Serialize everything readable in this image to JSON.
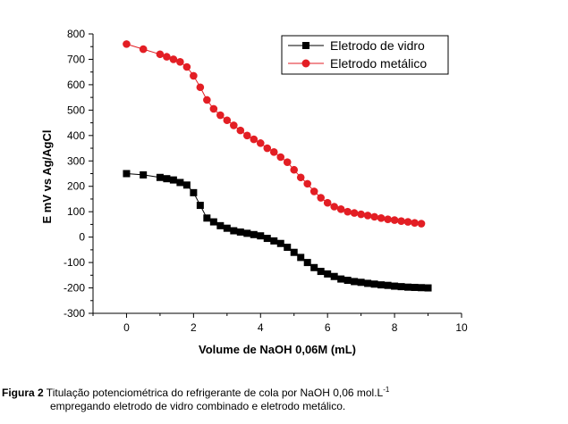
{
  "chart_data": {
    "type": "scatter",
    "xlabel": "Volume de NaOH 0,06M (mL)",
    "ylabel": "E mV vs Ag/AgCl",
    "xlim": [
      -1,
      10
    ],
    "ylim": [
      -300,
      800
    ],
    "x_ticks": [
      0,
      2,
      4,
      6,
      8,
      10
    ],
    "y_ticks": [
      -300,
      -200,
      -100,
      0,
      100,
      200,
      300,
      400,
      500,
      600,
      700,
      800
    ],
    "grid": false,
    "legend_position": "top-right",
    "series": [
      {
        "name": "Eletrodo de vidro",
        "color": "#000000",
        "marker": "square",
        "x": [
          0,
          0.5,
          1.0,
          1.2,
          1.4,
          1.6,
          1.8,
          2.0,
          2.2,
          2.4,
          2.6,
          2.8,
          3.0,
          3.2,
          3.4,
          3.6,
          3.8,
          4.0,
          4.2,
          4.4,
          4.6,
          4.8,
          5.0,
          5.2,
          5.4,
          5.6,
          5.8,
          6.0,
          6.2,
          6.4,
          6.6,
          6.8,
          7.0,
          7.2,
          7.4,
          7.6,
          7.8,
          8.0,
          8.2,
          8.4,
          8.6,
          8.8,
          9.0
        ],
        "y": [
          250,
          245,
          235,
          230,
          225,
          215,
          205,
          175,
          125,
          75,
          60,
          45,
          35,
          25,
          20,
          15,
          10,
          5,
          -5,
          -15,
          -25,
          -40,
          -60,
          -80,
          -100,
          -120,
          -135,
          -145,
          -155,
          -165,
          -170,
          -175,
          -178,
          -182,
          -185,
          -188,
          -190,
          -193,
          -195,
          -197,
          -198,
          -199,
          -200
        ]
      },
      {
        "name": "Eletrodo metálico",
        "color": "#e31e24",
        "marker": "circle",
        "x": [
          0,
          0.5,
          1.0,
          1.2,
          1.4,
          1.6,
          1.8,
          2.0,
          2.2,
          2.4,
          2.6,
          2.8,
          3.0,
          3.2,
          3.4,
          3.6,
          3.8,
          4.0,
          4.2,
          4.4,
          4.6,
          4.8,
          5.0,
          5.2,
          5.4,
          5.6,
          5.8,
          6.0,
          6.2,
          6.4,
          6.6,
          6.8,
          7.0,
          7.2,
          7.4,
          7.6,
          7.8,
          8.0,
          8.2,
          8.4,
          8.6,
          8.8
        ],
        "y": [
          760,
          740,
          720,
          710,
          700,
          690,
          670,
          635,
          590,
          540,
          505,
          480,
          460,
          440,
          420,
          400,
          385,
          370,
          350,
          335,
          315,
          295,
          265,
          235,
          210,
          180,
          155,
          135,
          120,
          110,
          100,
          95,
          90,
          85,
          80,
          75,
          70,
          67,
          63,
          60,
          56,
          53
        ]
      }
    ]
  },
  "caption": {
    "label": "Figura 2",
    "line1": " Titulação potenciométrica do refrigerante de cola por NaOH  0,06 mol.L",
    "line1_sup": "-1",
    "line2": "empregando eletrodo de vidro combinado e eletrodo metálico."
  }
}
